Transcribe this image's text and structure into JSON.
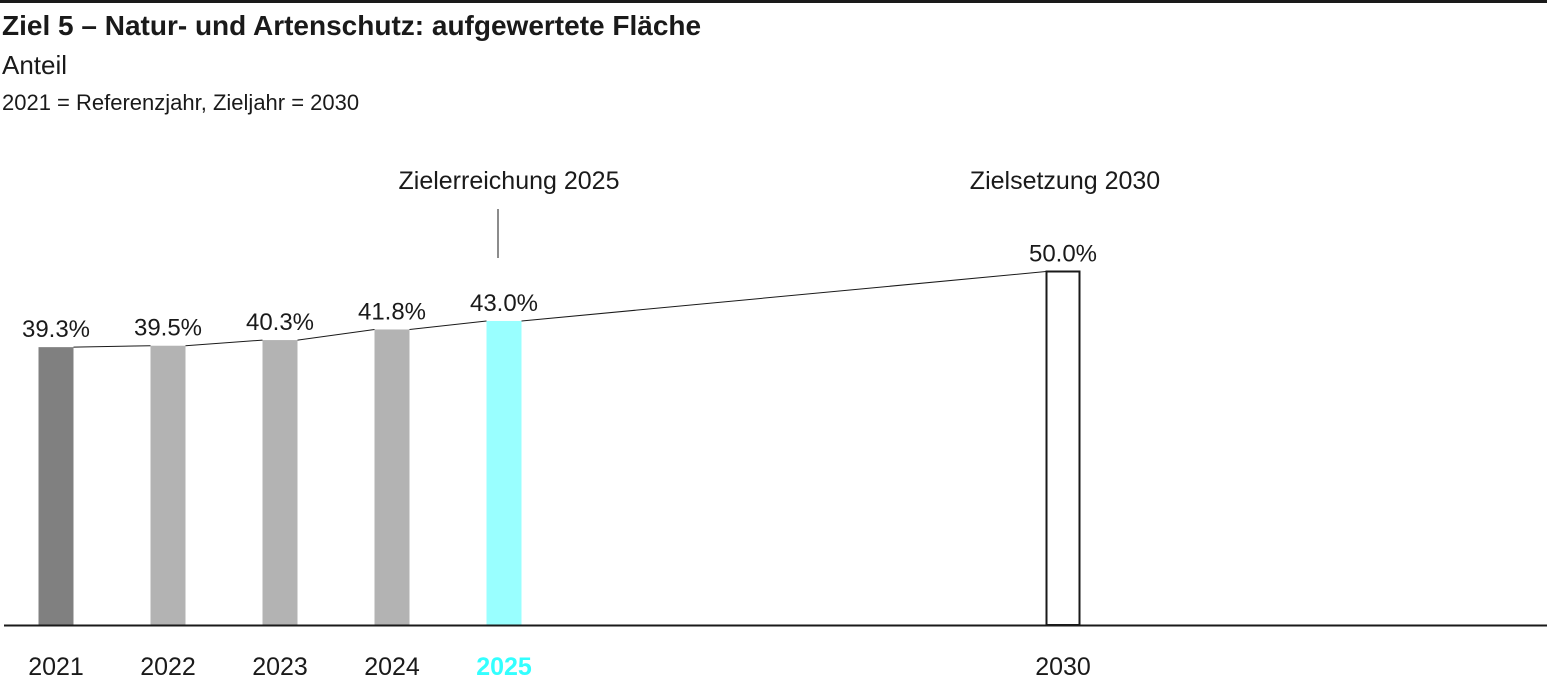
{
  "header": {
    "title": "Ziel 5 – Natur- und Artenschutz: aufgewertete Fläche",
    "subtitle": "Anteil",
    "note": "2021 = Referenzjahr, Zieljahr = 2030"
  },
  "chart_data": {
    "type": "bar",
    "categories": [
      "2021",
      "2022",
      "2023",
      "2024",
      "2025",
      "2030"
    ],
    "values": [
      39.3,
      39.5,
      40.3,
      41.8,
      43.0,
      50.0
    ],
    "value_labels": [
      "39.3%",
      "39.5%",
      "40.3%",
      "41.8%",
      "43.0%",
      "50.0%"
    ],
    "annotations": {
      "current": "Zielerreichung 2025",
      "target": "Zielsetzung 2030"
    },
    "ylim": [
      0,
      50
    ],
    "colors": {
      "reference": "#808080",
      "past": "#b3b3b3",
      "current": "#99ffff",
      "current_label": "#33ffff",
      "target_fill": "#ffffff",
      "target_stroke": "#1a1a1a"
    },
    "legend": "none",
    "grid": false
  }
}
